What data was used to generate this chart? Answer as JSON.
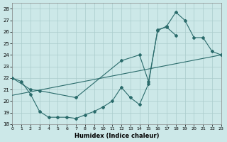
{
  "xlabel": "Humidex (Indice chaleur)",
  "xlim": [
    0,
    23
  ],
  "ylim": [
    18,
    28.5
  ],
  "yticks": [
    18,
    19,
    20,
    21,
    22,
    23,
    24,
    25,
    26,
    27,
    28
  ],
  "xticks": [
    0,
    1,
    2,
    3,
    4,
    5,
    6,
    7,
    8,
    9,
    10,
    11,
    12,
    13,
    14,
    15,
    16,
    17,
    18,
    19,
    20,
    21,
    22,
    23
  ],
  "xticklabels": [
    "0",
    "1",
    "2",
    "3",
    "4",
    "5",
    "6",
    "7",
    "8",
    "9",
    "10",
    "11",
    "12",
    "13",
    "14",
    "15",
    "16",
    "17",
    "18",
    "19",
    "20",
    "21",
    "22",
    "23"
  ],
  "bg_color": "#cce8e8",
  "grid_color": "#aacccc",
  "line_color": "#2a6b6b",
  "line1_x": [
    0,
    1,
    2,
    3,
    4,
    5,
    6,
    7,
    8,
    9,
    10,
    11,
    12,
    13,
    14,
    15,
    16,
    17,
    18
  ],
  "line1_y": [
    22.0,
    21.7,
    20.6,
    19.1,
    18.6,
    18.6,
    18.6,
    18.5,
    18.8,
    19.1,
    19.5,
    20.0,
    21.2,
    20.3,
    19.7,
    21.5,
    26.2,
    26.4,
    25.7
  ],
  "line2_x": [
    0,
    2,
    3,
    7,
    12,
    14,
    15,
    16,
    17,
    18,
    19,
    20,
    21,
    22,
    23
  ],
  "line2_y": [
    22.0,
    21.0,
    20.9,
    20.3,
    23.5,
    24.0,
    21.7,
    26.1,
    26.5,
    27.7,
    27.0,
    25.5,
    25.5,
    24.3,
    24.0
  ],
  "line3_x": [
    0,
    23
  ],
  "line3_y": [
    20.5,
    24.0
  ]
}
